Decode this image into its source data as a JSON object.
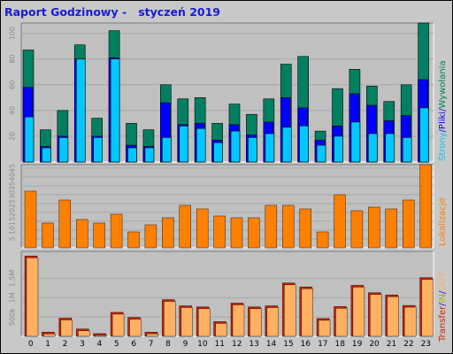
{
  "title": "Raport Godzinowy -   styczeń 2019",
  "colors": {
    "background": "#c8c8c8",
    "plot_background": "#c0c0c0",
    "title": "#1a1ad8",
    "strony": "#00c8ff",
    "pliki": "#0000ff",
    "wywolania": "#008060",
    "lokalizacje": "#ff8000",
    "transfer": "#d02000",
    "in": "#b0b000",
    "out": "#ffb060"
  },
  "chart_data": [
    {
      "type": "bar",
      "name": "strony-pliki-wywolania",
      "categories": [
        "0",
        "1",
        "2",
        "3",
        "4",
        "5",
        "6",
        "7",
        "8",
        "9",
        "10",
        "11",
        "12",
        "13",
        "14",
        "15",
        "16",
        "17",
        "18",
        "19",
        "20",
        "21",
        "22",
        "23"
      ],
      "yticks": [
        20,
        40,
        60,
        80,
        100
      ],
      "ylim": [
        0,
        108
      ],
      "legend_placement": "right",
      "legend": [
        {
          "text": "Strony",
          "color_key": "strony"
        },
        {
          "text": "/",
          "color_key": "title"
        },
        {
          "text": "Pliki",
          "color_key": "pliki"
        },
        {
          "text": "/",
          "color_key": "title"
        },
        {
          "text": "Wywołania",
          "color_key": "wywolania"
        }
      ],
      "series": [
        {
          "key": "wywolania",
          "values": [
            87,
            25,
            40,
            91,
            34,
            102,
            30,
            25,
            60,
            49,
            50,
            30,
            45,
            37,
            49,
            76,
            82,
            24,
            57,
            72,
            59,
            47,
            60,
            108
          ]
        },
        {
          "key": "pliki",
          "values": [
            58,
            12,
            20,
            80,
            20,
            81,
            13,
            12,
            46,
            29,
            30,
            17,
            29,
            21,
            31,
            50,
            42,
            17,
            28,
            53,
            44,
            32,
            36,
            64
          ]
        },
        {
          "key": "strony",
          "values": [
            35,
            11,
            19,
            80,
            19,
            80,
            11,
            11,
            19,
            28,
            26,
            15,
            24,
            19,
            22,
            27,
            28,
            13,
            20,
            31,
            22,
            22,
            19,
            42
          ]
        }
      ]
    },
    {
      "type": "bar",
      "name": "lokalizacje",
      "categories": [
        "0",
        "1",
        "2",
        "3",
        "4",
        "5",
        "6",
        "7",
        "8",
        "9",
        "10",
        "11",
        "12",
        "13",
        "14",
        "15",
        "16",
        "17",
        "18",
        "19",
        "20",
        "21",
        "22",
        "23"
      ],
      "yticks": [
        5,
        10,
        15,
        20,
        25,
        30,
        35,
        40,
        45
      ],
      "ylim": [
        0,
        47
      ],
      "legend_placement": "right",
      "legend": [
        {
          "text": "Lokalizacje",
          "color_key": "lokalizacje"
        }
      ],
      "series": [
        {
          "key": "lokalizacje",
          "values": [
            32,
            14,
            27,
            16,
            14,
            19,
            9,
            13,
            17,
            24,
            22,
            18,
            17,
            17,
            24,
            24,
            22,
            9,
            30,
            21,
            23,
            22,
            27,
            47
          ]
        }
      ]
    },
    {
      "type": "bar",
      "name": "transfer",
      "categories": [
        "0",
        "1",
        "2",
        "3",
        "4",
        "5",
        "6",
        "7",
        "8",
        "9",
        "10",
        "11",
        "12",
        "13",
        "14",
        "15",
        "16",
        "17",
        "18",
        "19",
        "20",
        "21",
        "22",
        "23"
      ],
      "xticks": [
        "0",
        "1",
        "2",
        "3",
        "4",
        "5",
        "6",
        "7",
        "8",
        "9",
        "10",
        "11",
        "12",
        "13",
        "14",
        "15",
        "16",
        "17",
        "18",
        "19",
        "20",
        "21",
        "22",
        "23"
      ],
      "yticks": [
        500,
        1000,
        1500
      ],
      "ytick_labels": [
        "500k",
        "1M",
        "1.5M"
      ],
      "ylim": [
        0,
        2200
      ],
      "legend_placement": "right",
      "legend": [
        {
          "text": "Transfer",
          "color_key": "transfer"
        },
        {
          "text": "/",
          "color_key": "title"
        },
        {
          "text": "IN",
          "color_key": "in"
        },
        {
          "text": "/",
          "color_key": "title"
        },
        {
          "text": "OUT",
          "color_key": "out"
        }
      ],
      "series": [
        {
          "key": "transfer",
          "values": [
            2080,
            110,
            470,
            190,
            70,
            620,
            490,
            110,
            950,
            790,
            760,
            380,
            860,
            760,
            790,
            1380,
            1280,
            460,
            770,
            1320,
            1130,
            1070,
            800,
            1520
          ]
        }
      ]
    }
  ]
}
